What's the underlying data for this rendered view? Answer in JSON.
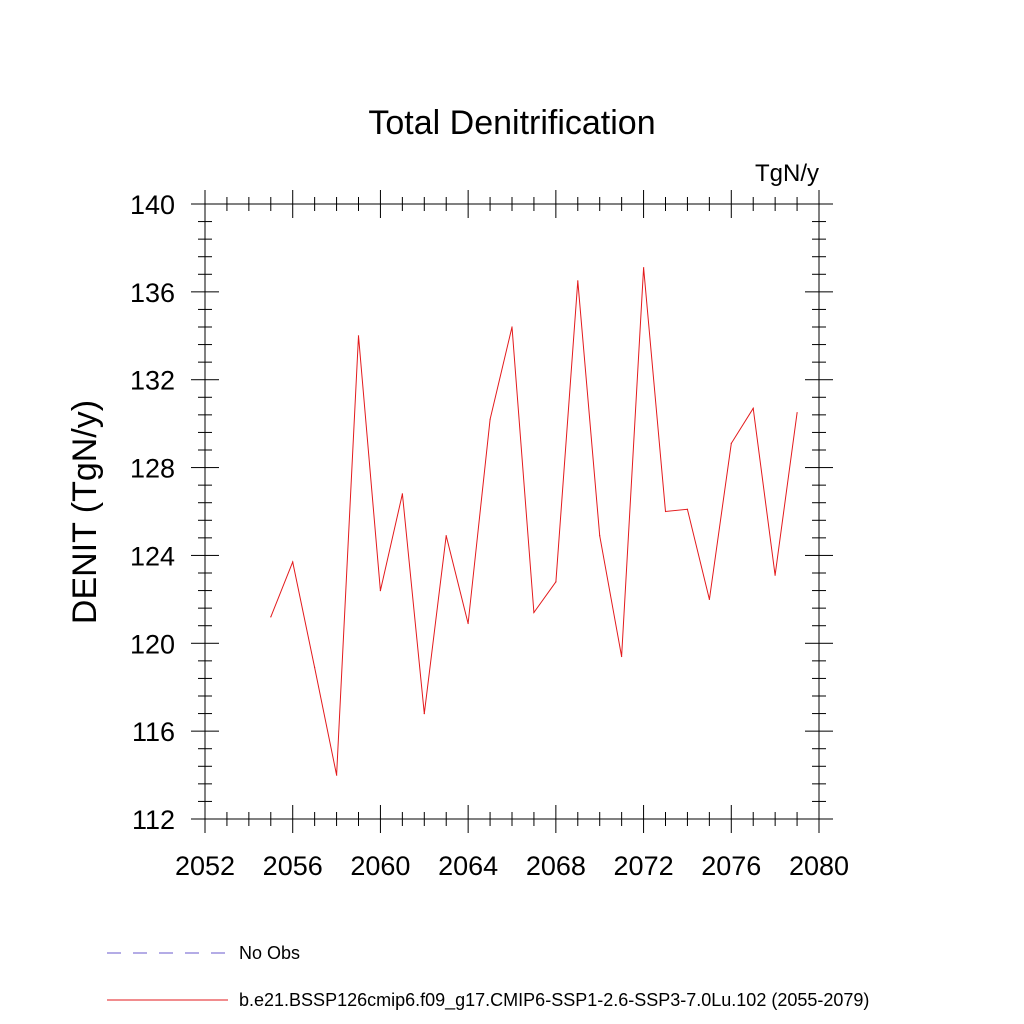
{
  "chart_data": {
    "type": "line",
    "title": "Total Denitrification",
    "units": "TgN/y",
    "xlabel": "",
    "ylabel": "DENIT  (TgN/y)",
    "xlim": [
      2052,
      2080
    ],
    "ylim": [
      112,
      140
    ],
    "x_ticks": [
      2052,
      2056,
      2060,
      2064,
      2068,
      2072,
      2076,
      2080
    ],
    "y_ticks": [
      112,
      116,
      120,
      124,
      128,
      132,
      136,
      140
    ],
    "grid": false,
    "legend_position": "bottom",
    "series": [
      {
        "name": "b.e21.BSSP126cmip6.f09_g17.CMIP6-SSP1-2.6-SSP3-7.0Lu.102 (2055-2079)",
        "color": "#e31a1c",
        "line_style": "solid",
        "x": [
          2055,
          2056,
          2057,
          2058,
          2059,
          2060,
          2061,
          2062,
          2063,
          2064,
          2065,
          2066,
          2067,
          2068,
          2069,
          2070,
          2071,
          2072,
          2073,
          2074,
          2075,
          2076,
          2077,
          2078,
          2079
        ],
        "values": [
          121.2,
          123.7,
          118.9,
          114.0,
          134.0,
          122.4,
          126.8,
          116.8,
          124.9,
          120.9,
          130.2,
          134.4,
          121.4,
          122.8,
          136.5,
          124.9,
          119.4,
          137.1,
          126.0,
          126.1,
          122.0,
          129.1,
          130.7,
          123.1,
          130.5
        ]
      }
    ],
    "legend": [
      {
        "label": "No Obs",
        "color": "#6a5acd",
        "line_style": "dashed"
      },
      {
        "label": "b.e21.BSSP126cmip6.f09_g17.CMIP6-SSP1-2.6-SSP3-7.0Lu.102 (2055-2079)",
        "color": "#e31a1c",
        "line_style": "solid"
      }
    ]
  }
}
